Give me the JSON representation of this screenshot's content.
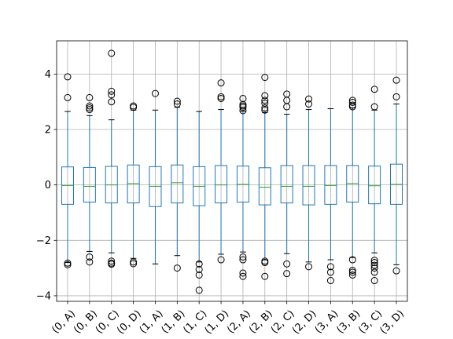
{
  "chart_data": {
    "type": "boxplot",
    "grid": true,
    "ylim": [
      -4.2,
      5.2
    ],
    "yticks": [
      -4,
      -2,
      0,
      2,
      4
    ],
    "categories": [
      "(0, A)",
      "(0, B)",
      "(0, C)",
      "(0, D)",
      "(1, A)",
      "(1, B)",
      "(1, C)",
      "(1, D)",
      "(2, A)",
      "(2, B)",
      "(2, C)",
      "(2, D)",
      "(3, A)",
      "(3, B)",
      "(3, C)",
      "(3, D)"
    ],
    "boxes": [
      {
        "q1": -0.7,
        "median": -0.02,
        "q3": 0.65,
        "whisker_low": -2.8,
        "whisker_high": 2.65,
        "outliers": [
          3.9,
          3.15,
          -2.82,
          -2.88
        ]
      },
      {
        "q1": -0.62,
        "median": -0.05,
        "q3": 0.63,
        "whisker_low": -2.4,
        "whisker_high": 2.5,
        "outliers": [
          3.15,
          2.85,
          2.78,
          2.72,
          -2.6,
          -2.78
        ]
      },
      {
        "q1": -0.65,
        "median": 0.0,
        "q3": 0.67,
        "whisker_low": -2.45,
        "whisker_high": 2.35,
        "outliers": [
          4.75,
          3.38,
          3.25,
          3.0,
          -2.75,
          -2.82,
          -2.86
        ]
      },
      {
        "q1": -0.65,
        "median": 0.05,
        "q3": 0.72,
        "whisker_low": -2.65,
        "whisker_high": 2.7,
        "outliers": [
          2.85,
          2.8,
          -2.78,
          -2.84
        ]
      },
      {
        "q1": -0.78,
        "median": -0.05,
        "q3": 0.66,
        "whisker_low": -2.85,
        "whisker_high": 2.7,
        "outliers": [
          3.3
        ]
      },
      {
        "q1": -0.65,
        "median": 0.08,
        "q3": 0.72,
        "whisker_low": -2.55,
        "whisker_high": 2.8,
        "outliers": [
          3.02,
          2.92,
          -3.0
        ]
      },
      {
        "q1": -0.75,
        "median": -0.05,
        "q3": 0.66,
        "whisker_low": -2.78,
        "whisker_high": 2.65,
        "outliers": [
          -2.85,
          -3.05,
          -3.25,
          -3.8
        ]
      },
      {
        "q1": -0.65,
        "median": 0.0,
        "q3": 0.7,
        "whisker_low": -2.5,
        "whisker_high": 2.72,
        "outliers": [
          3.68,
          3.18,
          3.12,
          -2.7
        ]
      },
      {
        "q1": -0.62,
        "median": 0.02,
        "q3": 0.68,
        "whisker_low": -2.42,
        "whisker_high": 2.65,
        "outliers": [
          3.12,
          2.9,
          2.85,
          2.8,
          2.68,
          -2.6,
          -2.7,
          -3.18,
          -3.3
        ]
      },
      {
        "q1": -0.72,
        "median": -0.08,
        "q3": 0.62,
        "whisker_low": -2.7,
        "whisker_high": 2.62,
        "outliers": [
          3.88,
          3.22,
          3.05,
          2.95,
          2.78,
          2.7,
          -2.75,
          -2.8,
          -3.3
        ]
      },
      {
        "q1": -0.65,
        "median": -0.05,
        "q3": 0.7,
        "whisker_low": -2.48,
        "whisker_high": 2.55,
        "outliers": [
          3.28,
          3.05,
          2.82,
          -2.85,
          -3.2
        ]
      },
      {
        "q1": -0.72,
        "median": -0.05,
        "q3": 0.7,
        "whisker_low": -2.78,
        "whisker_high": 2.72,
        "outliers": [
          3.1,
          2.92,
          -2.95
        ]
      },
      {
        "q1": -0.7,
        "median": -0.02,
        "q3": 0.7,
        "whisker_low": -2.7,
        "whisker_high": 2.75,
        "outliers": [
          -2.95,
          -3.15,
          -3.45
        ]
      },
      {
        "q1": -0.62,
        "median": 0.05,
        "q3": 0.7,
        "whisker_low": -2.62,
        "whisker_high": 2.78,
        "outliers": [
          3.05,
          2.98,
          2.88,
          2.82,
          -2.7,
          -3.08,
          -3.15,
          -3.25
        ]
      },
      {
        "q1": -0.68,
        "median": -0.03,
        "q3": 0.68,
        "whisker_low": -2.45,
        "whisker_high": 2.7,
        "outliers": [
          3.45,
          2.82,
          -2.72,
          -2.8,
          -2.9,
          -3.0,
          -3.15,
          -3.45
        ]
      },
      {
        "q1": -0.7,
        "median": 0.02,
        "q3": 0.75,
        "whisker_low": -2.88,
        "whisker_high": 2.92,
        "outliers": [
          3.78,
          3.18,
          -3.1
        ]
      }
    ]
  }
}
